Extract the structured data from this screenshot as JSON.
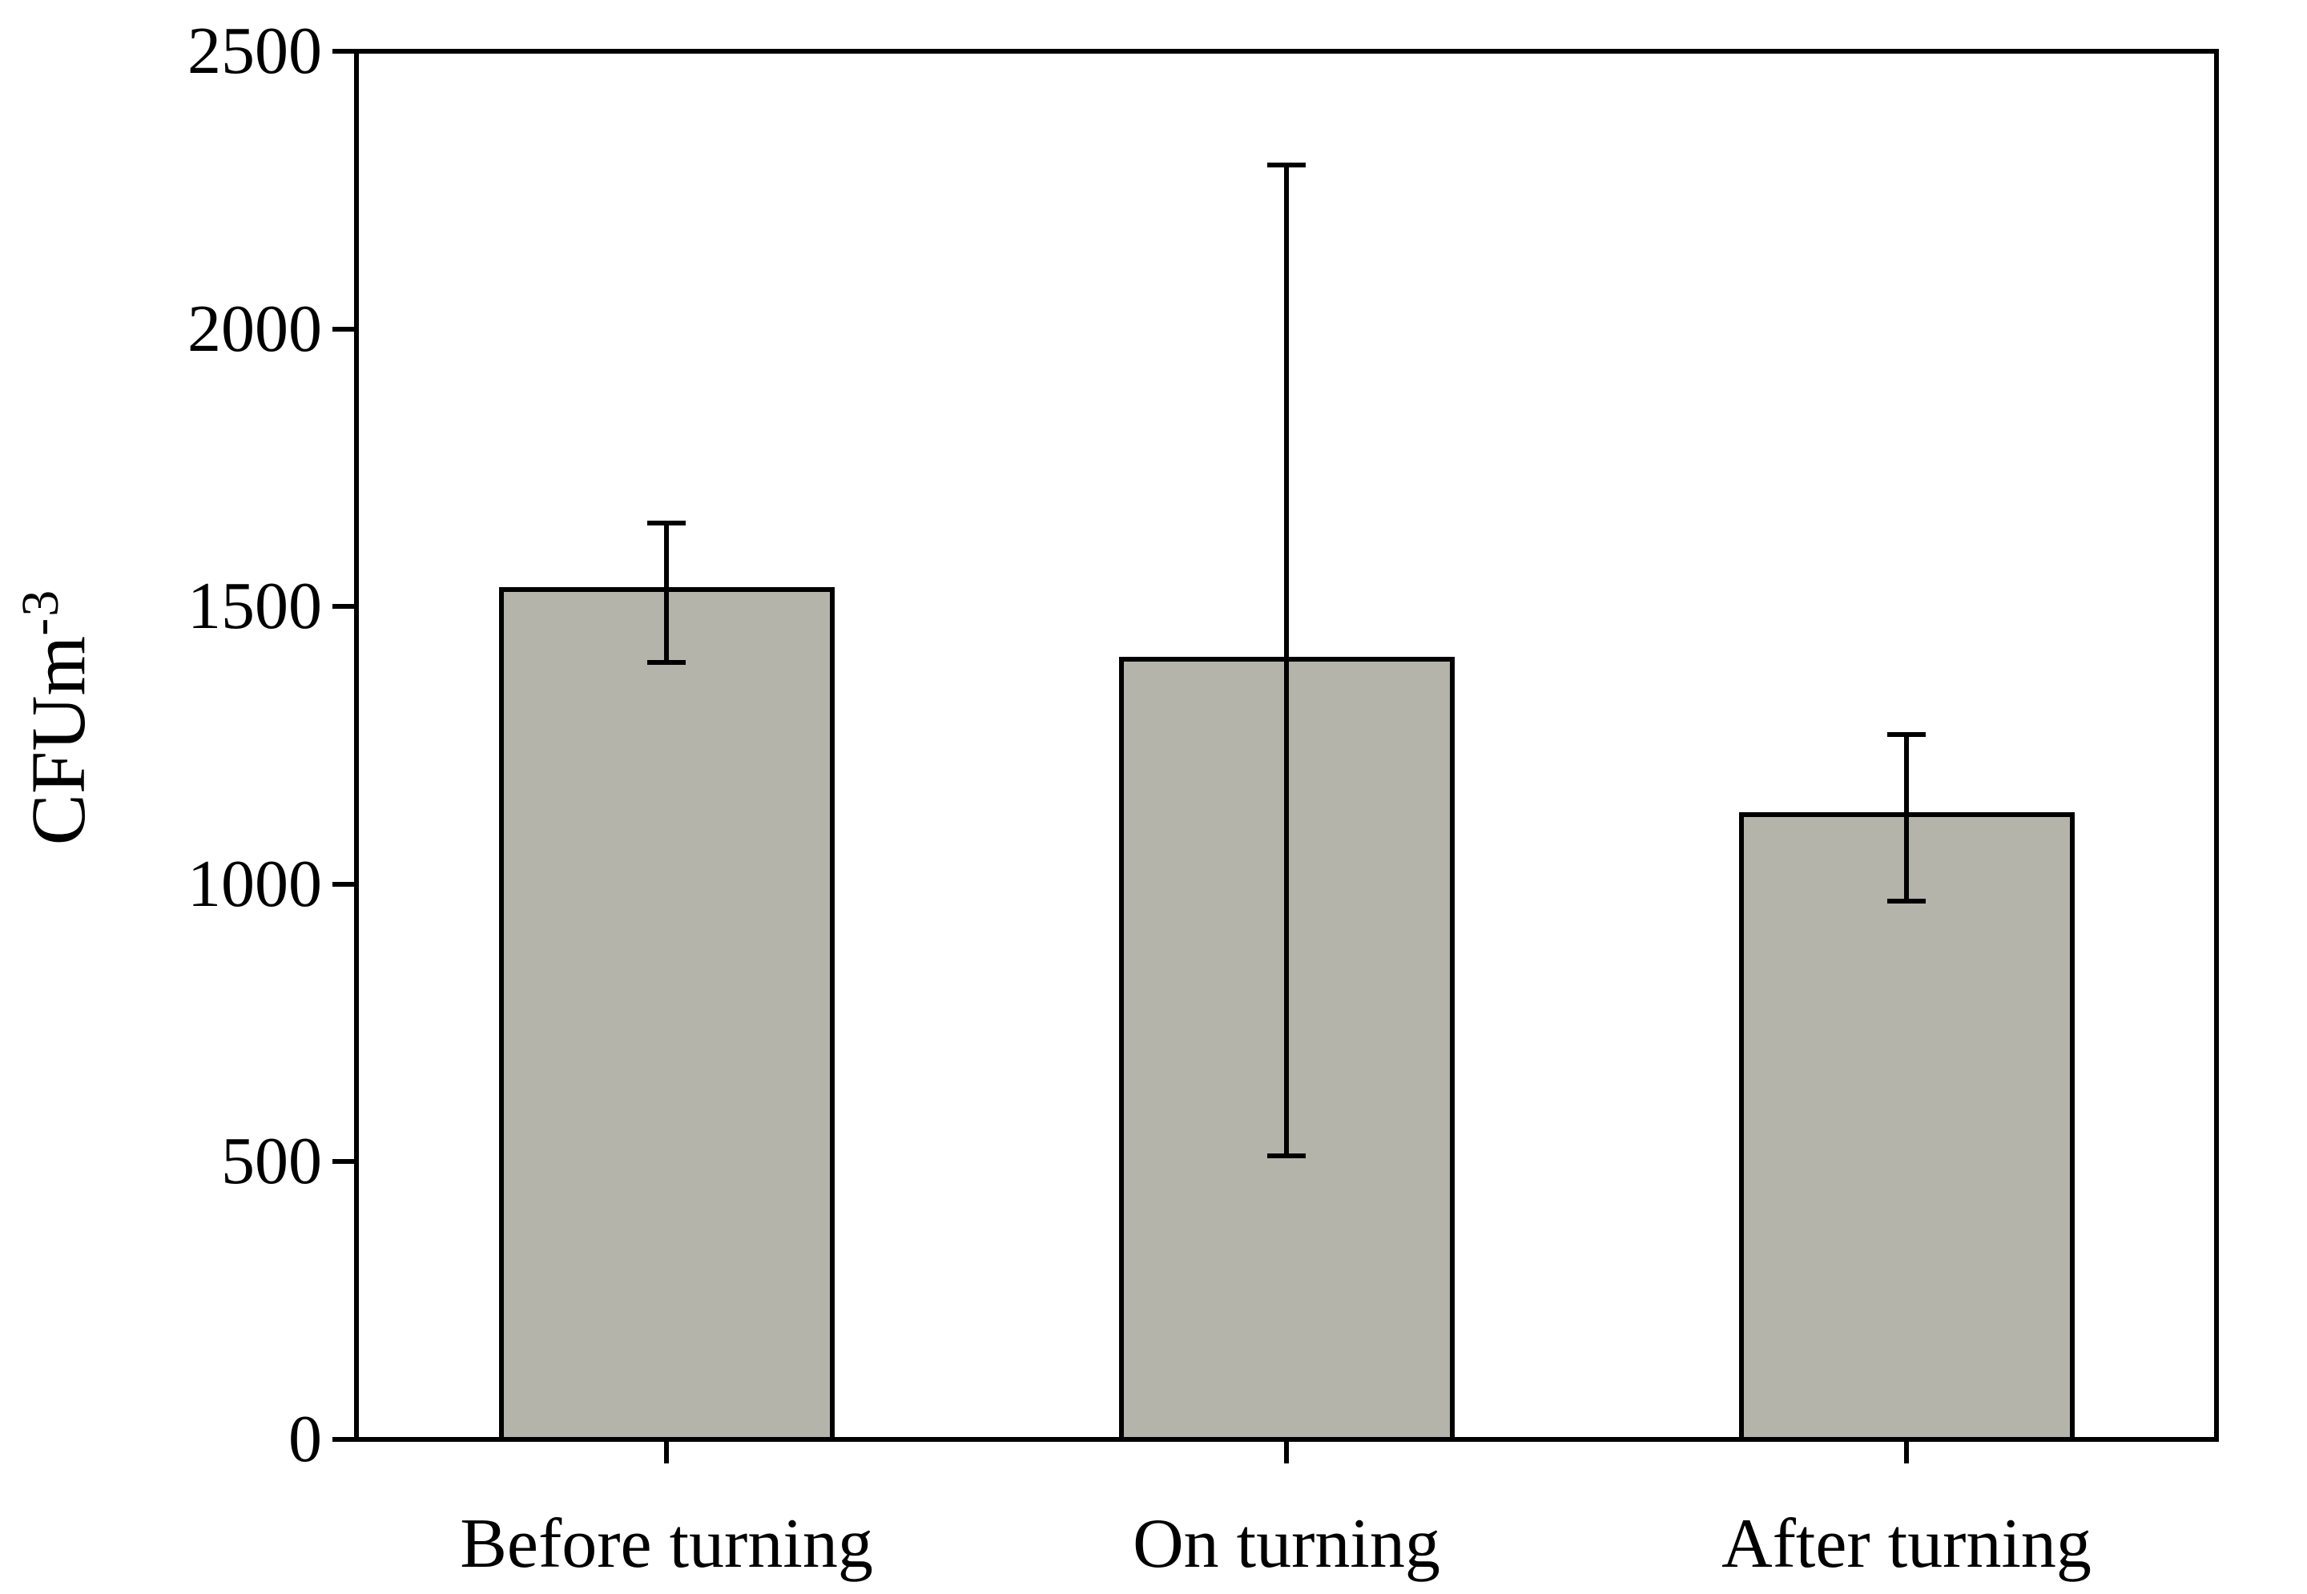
{
  "chart_data": {
    "type": "bar",
    "title": "",
    "categories": [
      "Before turning",
      "On turning",
      "After turning"
    ],
    "values": [
      1530,
      1405,
      1125
    ],
    "error_high": [
      1650,
      2295,
      1270
    ],
    "error_low": [
      1400,
      510,
      970
    ],
    "yticks": [
      0,
      500,
      1000,
      1500,
      2000,
      2500
    ],
    "ylim": [
      0,
      2500
    ],
    "ylabel_base": "CFUm",
    "ylabel_exponent": "-3",
    "xlabel": "",
    "legend_position": "none",
    "grid": false,
    "frame": "full-box",
    "bar_fill_color": "#b4b4aa",
    "line_color": "#000000",
    "background_color": "#ffffff"
  }
}
